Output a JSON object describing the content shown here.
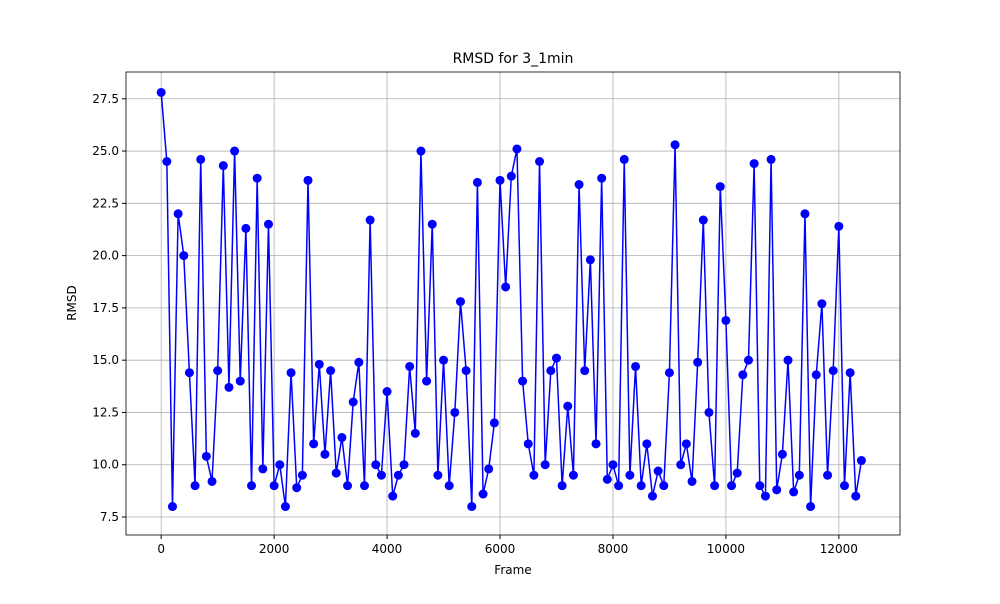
{
  "chart_data": {
    "type": "line",
    "title": "RMSD for 3_1min",
    "x_label": "Frame",
    "y_label": "RMSD",
    "x": [
      0,
      100,
      200,
      300,
      400,
      500,
      600,
      700,
      800,
      900,
      1000,
      1100,
      1200,
      1300,
      1400,
      1500,
      1600,
      1700,
      1800,
      1900,
      2000,
      2100,
      2200,
      2300,
      2400,
      2500,
      2600,
      2700,
      2800,
      2900,
      3000,
      3100,
      3200,
      3300,
      3400,
      3500,
      3600,
      3700,
      3800,
      3900,
      4000,
      4100,
      4200,
      4300,
      4400,
      4500,
      4600,
      4700,
      4800,
      4900,
      5000,
      5100,
      5200,
      5300,
      5400,
      5500,
      5600,
      5700,
      5800,
      5900,
      6000,
      6100,
      6200,
      6300,
      6400,
      6500,
      6600,
      6700,
      6800,
      6900,
      7000,
      7100,
      7200,
      7300,
      7400,
      7500,
      7600,
      7700,
      7800,
      7900,
      8000,
      8100,
      8200,
      8300,
      8400,
      8500,
      8600,
      8700,
      8800,
      8900,
      9000,
      9100,
      9200,
      9300,
      9400,
      9500,
      9600,
      9700,
      9800,
      9900,
      10000,
      10100,
      10200,
      10300,
      10400,
      10500,
      10600,
      10700,
      10800,
      10900,
      11000,
      11100,
      11200,
      11300,
      11400,
      11500,
      11600,
      11700,
      11800,
      11900,
      12000,
      12100,
      12200,
      12300,
      12400
    ],
    "series": [
      {
        "name": "RMSD",
        "color": "#0000ff",
        "values": [
          27.8,
          24.5,
          8.0,
          22.0,
          20.0,
          14.4,
          9.0,
          24.6,
          10.4,
          9.2,
          14.5,
          24.3,
          13.7,
          25.0,
          14.0,
          21.3,
          9.0,
          23.7,
          9.8,
          21.5,
          9.0,
          10.0,
          8.0,
          14.4,
          8.9,
          9.5,
          23.6,
          11.0,
          14.8,
          10.5,
          14.5,
          9.6,
          11.3,
          9.0,
          13.0,
          14.9,
          9.0,
          21.7,
          10.0,
          9.5,
          13.5,
          8.5,
          9.5,
          10.0,
          14.7,
          11.5,
          25.0,
          14.0,
          21.5,
          9.5,
          15.0,
          9.0,
          12.5,
          17.8,
          14.5,
          8.0,
          23.5,
          8.6,
          9.8,
          12.0,
          23.6,
          18.5,
          23.8,
          25.1,
          14.0,
          11.0,
          9.5,
          24.5,
          10.0,
          14.5,
          15.1,
          9.0,
          12.8,
          9.5,
          23.4,
          14.5,
          19.8,
          11.0,
          23.7,
          9.3,
          10.0,
          9.0,
          24.6,
          9.5,
          14.7,
          9.0,
          11.0,
          8.5,
          9.7,
          9.0,
          14.4,
          25.3,
          10.0,
          11.0,
          9.2,
          14.9,
          21.7,
          12.5,
          9.0,
          23.3,
          16.9,
          9.0,
          9.6,
          14.3,
          15.0,
          24.4,
          9.0,
          8.5,
          24.6,
          8.8,
          10.5,
          15.0,
          8.7,
          9.5,
          22.0,
          8.0,
          14.3,
          17.7,
          9.5,
          14.5,
          21.4,
          9.0,
          14.4,
          8.5,
          10.2
        ]
      }
    ],
    "xlim": [
      -623,
      13083
    ],
    "ylim": [
      6.64,
      28.78
    ],
    "xticks": [
      0,
      2000,
      4000,
      6000,
      8000,
      10000,
      12000
    ],
    "yticks": [
      7.5,
      {
        "value": 10,
        "label": "10.0"
      },
      12.5,
      {
        "value": 15,
        "label": "15.0"
      },
      17.5,
      {
        "value": 20,
        "label": "20.0"
      },
      22.5,
      {
        "value": 25,
        "label": "25.0"
      },
      27.5
    ],
    "grid": true,
    "markers": true
  }
}
